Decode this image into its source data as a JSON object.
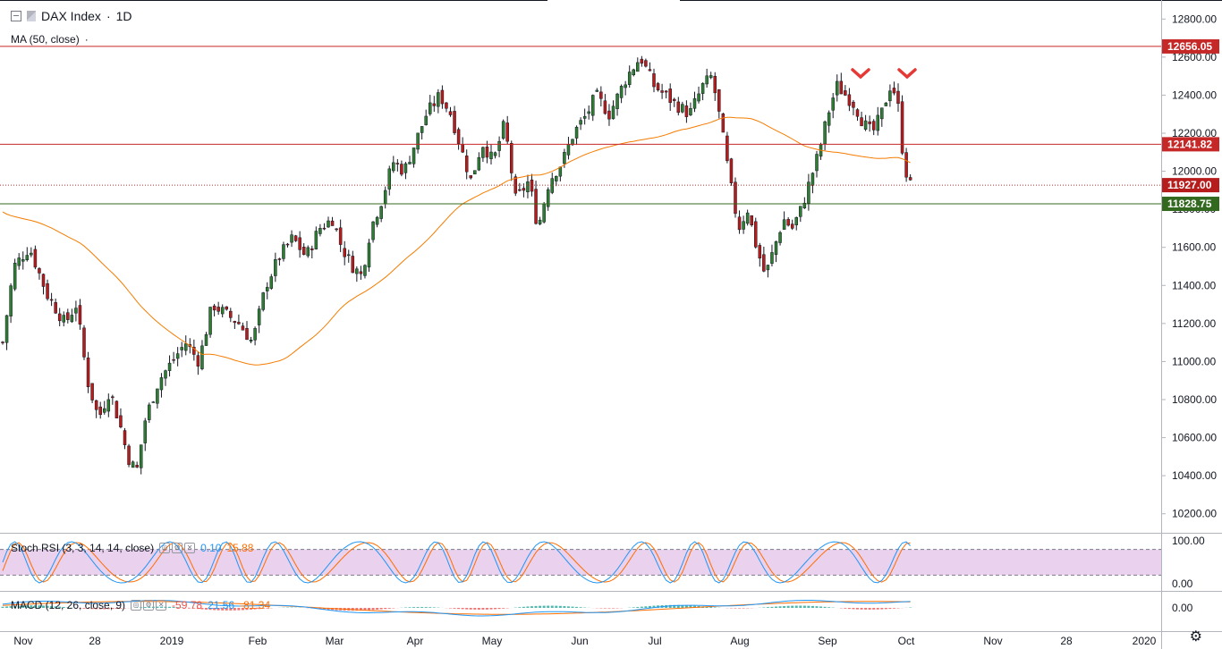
{
  "header": {
    "symbol": "DAX Index",
    "interval": "1D",
    "ma_label": "MA (50, close)"
  },
  "colors": {
    "up": "#26a69a",
    "down": "#ef5350",
    "body_up": "#2e7d32",
    "body_down": "#b71c1c",
    "ma": "#f57c00",
    "resistance": "#c62828",
    "support": "#33691e",
    "rsi_k": "#2196f3",
    "rsi_d": "#ff6d00",
    "rsi_band": "#e1bee7",
    "marker": "#e53935"
  },
  "price_axis": {
    "ticks": [
      "12800.00",
      "12600.00",
      "12400.00",
      "12200.00",
      "12000.00",
      "11800.00",
      "11600.00",
      "11400.00",
      "11200.00",
      "11000.00",
      "10800.00",
      "10600.00",
      "10400.00",
      "10200.00"
    ],
    "min": 10100,
    "max": 12900,
    "labels": [
      {
        "value": 12656.05,
        "text": "12656.05",
        "kind": "resistance"
      },
      {
        "value": 12141.82,
        "text": "12141.82",
        "kind": "resistance"
      },
      {
        "value": 11927.0,
        "text": "11927.00",
        "kind": "last"
      },
      {
        "value": 11828.75,
        "text": "11828.75",
        "kind": "support"
      }
    ]
  },
  "time_axis": {
    "labels": [
      "Nov",
      "28",
      "2019",
      "Feb",
      "Mar",
      "Apr",
      "May",
      "Jun",
      "Jul",
      "Aug",
      "Sep",
      "Oct",
      "Nov",
      "28",
      "2020"
    ]
  },
  "stoch_rsi": {
    "label": "Stoch RSI (3, 3, 14, 14, close)",
    "k_value": "0.10",
    "d_value": "15.88",
    "ticks": [
      "100.00",
      "0.00"
    ]
  },
  "macd": {
    "label": "MACD (12, 26, close, 9)",
    "macd_value": "-59.78",
    "signal_value": "21.56",
    "hist_value": "-81.34",
    "ticks": [
      "0.00"
    ]
  },
  "chart_data": {
    "type": "candlestick",
    "series_name": "DAX Index",
    "x_range": [
      "2018-10-29",
      "2020-01-03"
    ],
    "y_range": [
      10100,
      12900
    ],
    "levels": [
      12656.05,
      12141.82,
      11828.75
    ],
    "last_price": 11927.0,
    "markers": [
      {
        "date": "2019-09-12",
        "shape": "chevron-down"
      },
      {
        "date": "2019-10-01",
        "shape": "chevron-down"
      }
    ],
    "ohlc_close_monthly_approx": [
      {
        "date": "2018-11-01",
        "close": 11450
      },
      {
        "date": "2018-12-01",
        "close": 10900
      },
      {
        "date": "2018-12-27",
        "close": 10420
      },
      {
        "date": "2019-01-15",
        "close": 10890
      },
      {
        "date": "2019-02-01",
        "close": 11180
      },
      {
        "date": "2019-03-01",
        "close": 11600
      },
      {
        "date": "2019-04-01",
        "close": 11900
      },
      {
        "date": "2019-05-01",
        "close": 12300
      },
      {
        "date": "2019-06-03",
        "close": 11900
      },
      {
        "date": "2019-07-01",
        "close": 12550
      },
      {
        "date": "2019-08-01",
        "close": 12150
      },
      {
        "date": "2019-08-15",
        "close": 11450
      },
      {
        "date": "2019-09-02",
        "close": 11950
      },
      {
        "date": "2019-10-01",
        "close": 12450
      },
      {
        "date": "2019-10-04",
        "close": 11927
      }
    ]
  }
}
